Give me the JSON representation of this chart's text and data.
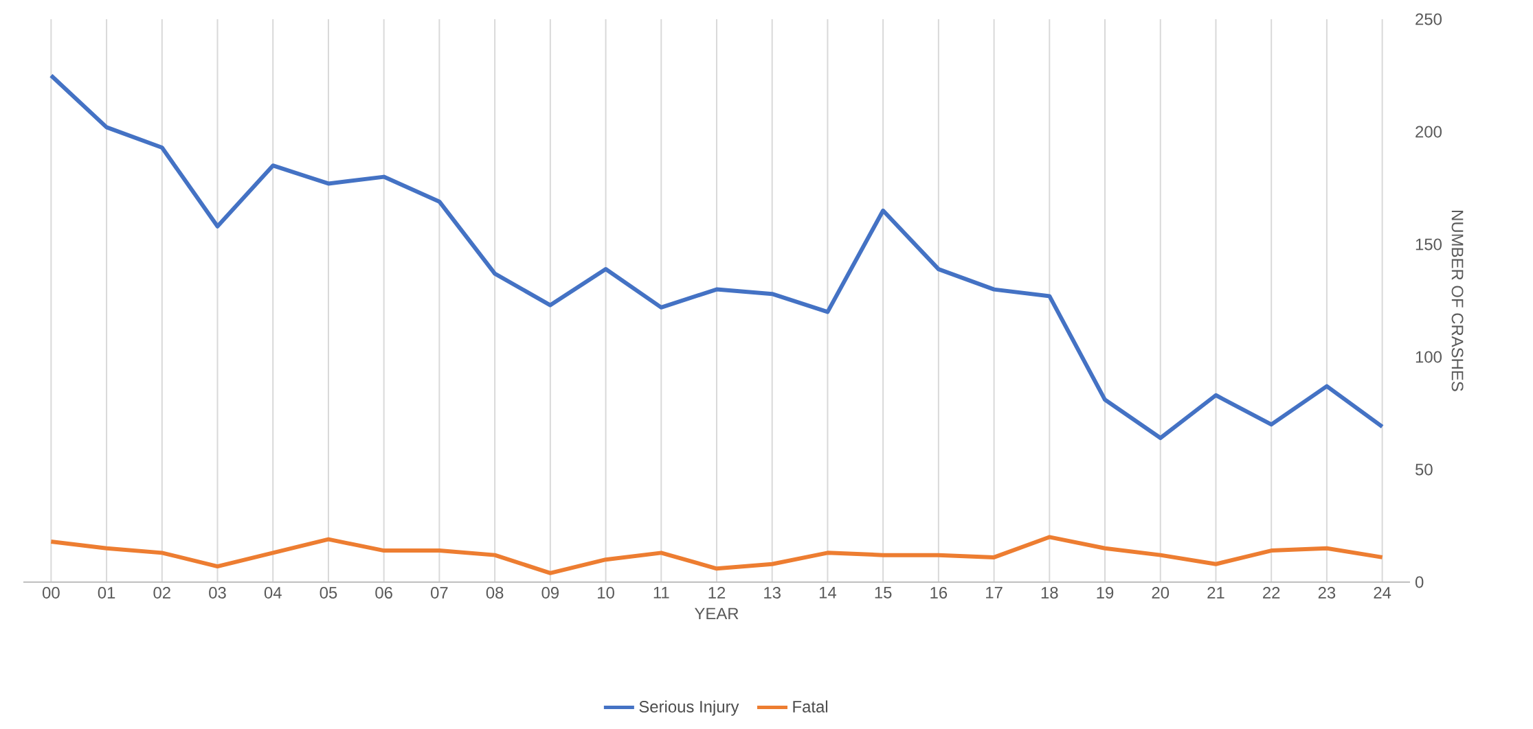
{
  "chart_data": {
    "type": "line",
    "xlabel": "YEAR",
    "ylabel": "NUMBER OF CRASHES",
    "categories": [
      "00",
      "01",
      "02",
      "03",
      "04",
      "05",
      "06",
      "07",
      "08",
      "09",
      "10",
      "11",
      "12",
      "13",
      "14",
      "15",
      "16",
      "17",
      "18",
      "19",
      "20",
      "21",
      "22",
      "23",
      "24"
    ],
    "series": [
      {
        "name": "Serious Injury",
        "color": "#4472c4",
        "values": [
          225,
          202,
          193,
          158,
          185,
          177,
          180,
          169,
          137,
          123,
          139,
          122,
          130,
          128,
          120,
          165,
          139,
          130,
          127,
          81,
          64,
          83,
          70,
          87,
          69
        ]
      },
      {
        "name": "Fatal",
        "color": "#ed7d31",
        "values": [
          18,
          15,
          13,
          7,
          13,
          19,
          14,
          14,
          12,
          4,
          10,
          13,
          6,
          8,
          13,
          12,
          12,
          11,
          20,
          15,
          12,
          8,
          14,
          15,
          11
        ]
      }
    ],
    "ylim": [
      0,
      250
    ],
    "yticks": [
      0,
      50,
      100,
      150,
      200,
      250
    ],
    "grid": "x",
    "legend": "bottom",
    "marker": "none",
    "line_style": "solid"
  }
}
